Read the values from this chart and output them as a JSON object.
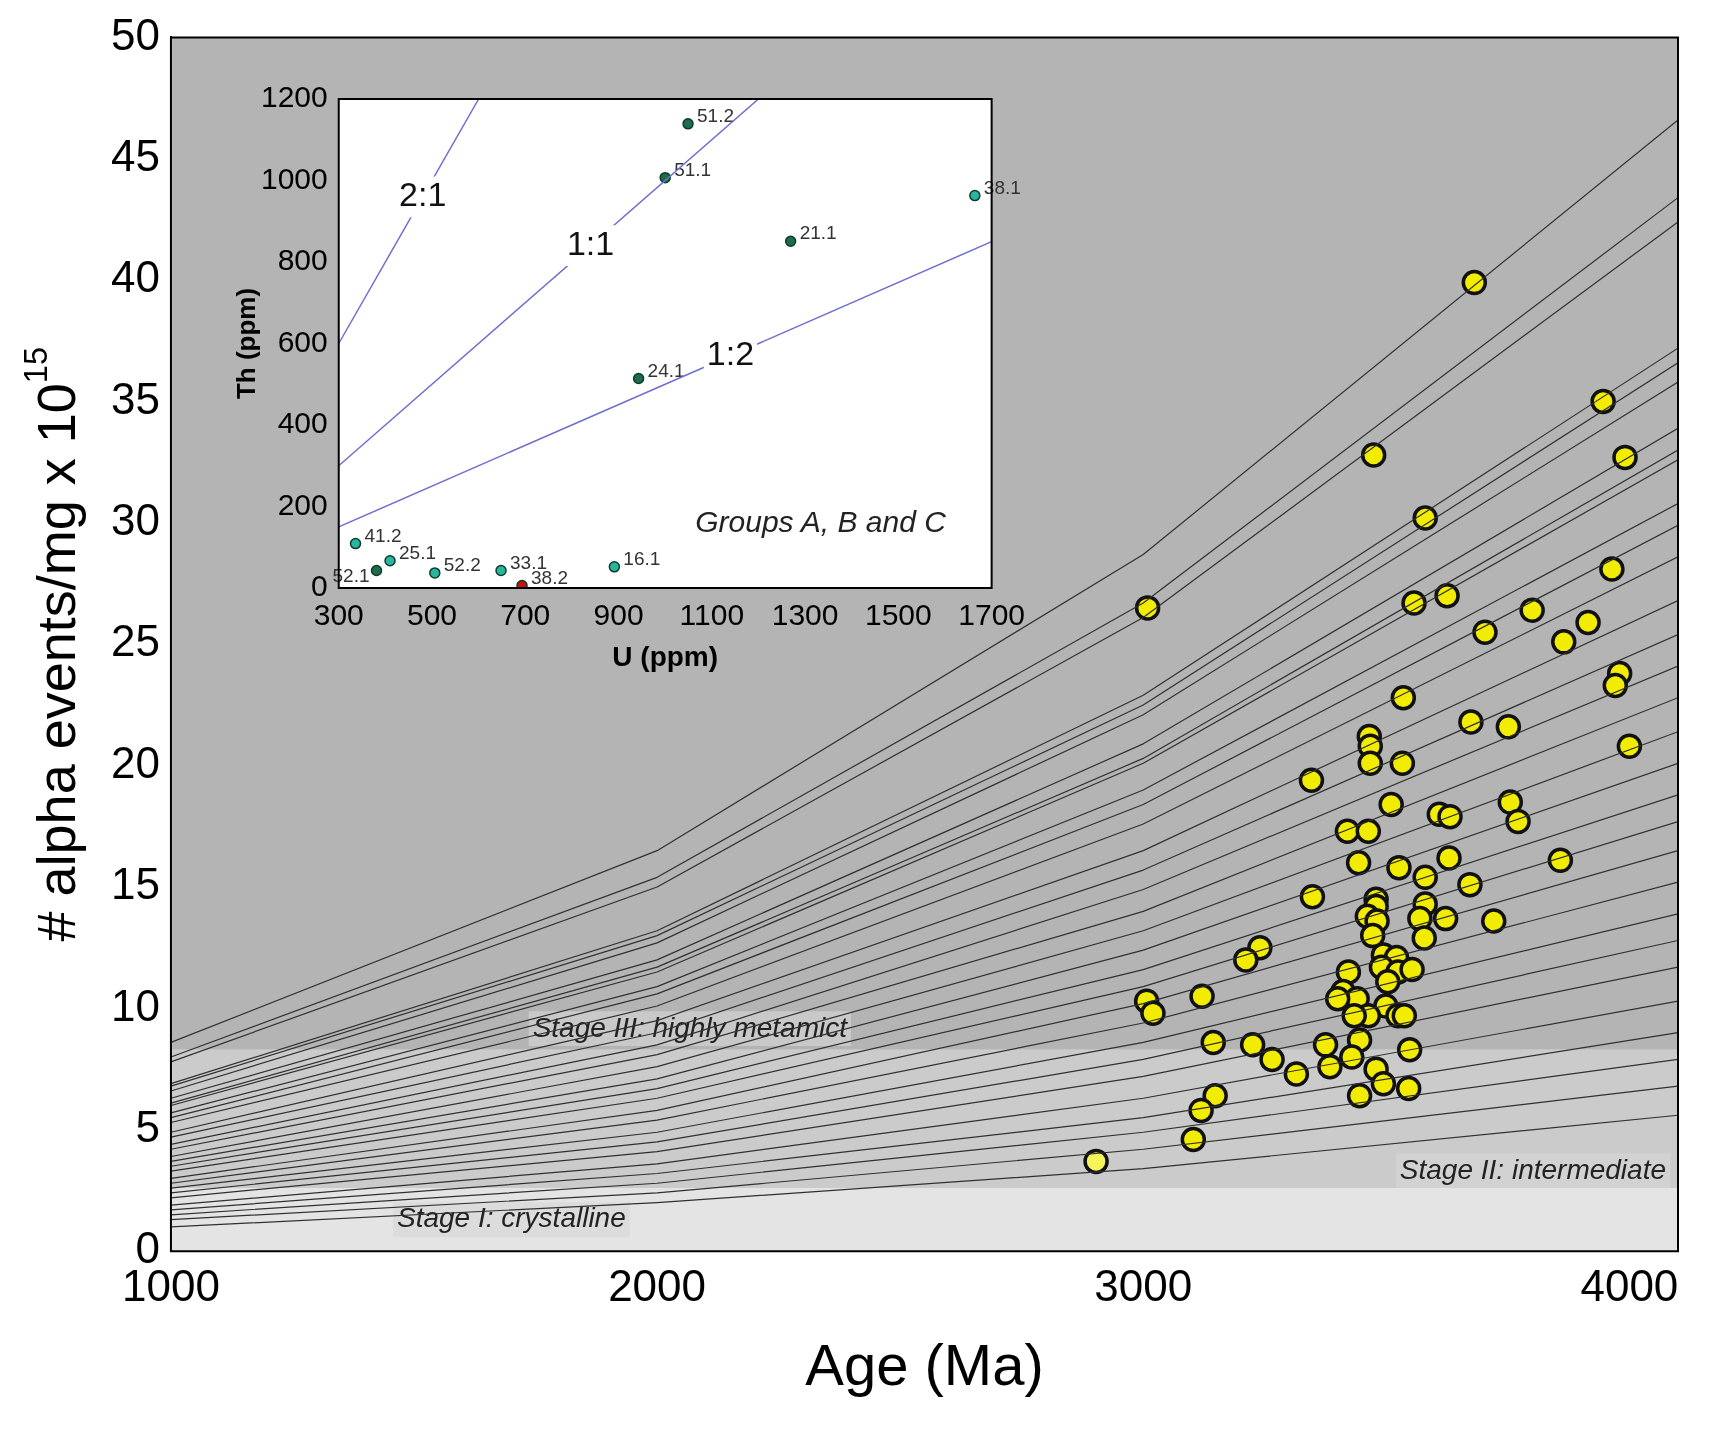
{
  "chart_data": [
    {
      "type": "scatter",
      "xlabel": "Age (Ma)",
      "ylabel": "# alpha events/mg x 10$^{15}$",
      "xlim": [
        1000,
        4100
      ],
      "xticks": [
        1000,
        2000,
        3000,
        4000
      ],
      "ylim": [
        0,
        50
      ],
      "yticks": [
        0,
        5,
        10,
        15,
        20,
        25,
        30,
        35,
        40,
        45,
        50
      ],
      "grid": false,
      "legend": false,
      "bands": [
        {
          "axis": "y",
          "from": 0,
          "to": 2.6,
          "label": "Stage I: crystalline",
          "color": "#e4e4e4"
        },
        {
          "axis": "y",
          "from": 2.6,
          "to": 8.3,
          "label": "Stage II: intermediate",
          "color": "#cbcbcb"
        },
        {
          "axis": "y",
          "from": 8.3,
          "to": 50,
          "label": "Stage III: highly metamict",
          "color": "#b4b4b4"
        }
      ],
      "series": [
        {
          "type": "line",
          "color": "#303030",
          "x": [
            1000,
            2000,
            3000,
            4100
          ],
          "values": [
            8.6,
            16.5,
            28.7,
            46.6
          ]
        },
        {
          "type": "line",
          "color": "#303030",
          "x": [
            1000,
            2000,
            3000,
            4100
          ],
          "values": [
            8.0,
            15.4,
            26.7,
            43.4
          ]
        },
        {
          "type": "line",
          "color": "#303030",
          "x": [
            1000,
            2000,
            3000,
            4100
          ],
          "values": [
            7.8,
            15.0,
            26.1,
            42.4
          ]
        },
        {
          "type": "line",
          "color": "#303030",
          "x": [
            1000,
            2000,
            3000,
            4100
          ],
          "values": [
            6.9,
            13.2,
            22.9,
            37.2
          ]
        },
        {
          "type": "line",
          "color": "#303030",
          "x": [
            1000,
            2000,
            3000,
            4100
          ],
          "values": [
            6.8,
            13.0,
            22.5,
            36.6
          ]
        },
        {
          "type": "line",
          "color": "#303030",
          "x": [
            1000,
            2000,
            3000,
            4100
          ],
          "values": [
            6.6,
            12.7,
            22.1,
            35.8
          ]
        },
        {
          "type": "line",
          "color": "#303030",
          "x": [
            1000,
            2000,
            3000,
            4100
          ],
          "values": [
            6.3,
            12.0,
            20.9,
            33.9
          ]
        },
        {
          "type": "line",
          "color": "#303030",
          "x": [
            1000,
            2000,
            3000,
            4100
          ],
          "values": [
            6.1,
            11.7,
            20.3,
            33.0
          ]
        },
        {
          "type": "line",
          "color": "#303030",
          "x": [
            1000,
            2000,
            3000,
            4100
          ],
          "values": [
            6.0,
            11.5,
            20.1,
            32.6
          ]
        },
        {
          "type": "line",
          "color": "#303030",
          "x": [
            1000,
            2000,
            3000,
            4100
          ],
          "values": [
            5.7,
            10.9,
            19.0,
            30.8
          ]
        },
        {
          "type": "line",
          "color": "#303030",
          "x": [
            1000,
            2000,
            3000,
            4100
          ],
          "values": [
            5.5,
            10.6,
            18.4,
            29.9
          ]
        },
        {
          "type": "line",
          "color": "#303030",
          "x": [
            1000,
            2000,
            3000,
            4100
          ],
          "values": [
            5.3,
            10.1,
            17.6,
            28.6
          ]
        },
        {
          "type": "line",
          "color": "#303030",
          "x": [
            1000,
            2000,
            3000,
            4100
          ],
          "values": [
            4.9,
            9.5,
            16.5,
            26.8
          ]
        },
        {
          "type": "line",
          "color": "#303030",
          "x": [
            1000,
            2000,
            3000,
            4100
          ],
          "values": [
            4.7,
            9.0,
            15.7,
            25.4
          ]
        },
        {
          "type": "line",
          "color": "#303030",
          "x": [
            1000,
            2000,
            3000,
            4100
          ],
          "values": [
            4.4,
            8.5,
            14.9,
            24.1
          ]
        },
        {
          "type": "line",
          "color": "#303030",
          "x": [
            1000,
            2000,
            3000,
            4100
          ],
          "values": [
            4.2,
            8.1,
            14.0,
            22.8
          ]
        },
        {
          "type": "line",
          "color": "#303030",
          "x": [
            1000,
            2000,
            3000,
            4100
          ],
          "values": [
            3.9,
            7.6,
            13.2,
            21.4
          ]
        },
        {
          "type": "line",
          "color": "#303030",
          "x": [
            1000,
            2000,
            3000,
            4100
          ],
          "values": [
            3.7,
            7.1,
            12.4,
            20.1
          ]
        },
        {
          "type": "line",
          "color": "#303030",
          "x": [
            1000,
            2000,
            3000,
            4100
          ],
          "values": [
            3.5,
            6.7,
            11.6,
            18.8
          ]
        },
        {
          "type": "line",
          "color": "#303030",
          "x": [
            1000,
            2000,
            3000,
            4100
          ],
          "values": [
            3.3,
            6.3,
            10.9,
            17.7
          ]
        },
        {
          "type": "line",
          "color": "#303030",
          "x": [
            1000,
            2000,
            3000,
            4100
          ],
          "values": [
            3.0,
            5.8,
            10.2,
            16.5
          ]
        },
        {
          "type": "line",
          "color": "#303030",
          "x": [
            1000,
            2000,
            3000,
            4100
          ],
          "values": [
            2.8,
            5.4,
            9.4,
            15.2
          ]
        },
        {
          "type": "line",
          "color": "#303030",
          "x": [
            1000,
            2000,
            3000,
            4100
          ],
          "values": [
            2.6,
            4.9,
            8.6,
            13.9
          ]
        },
        {
          "type": "line",
          "color": "#303030",
          "x": [
            1000,
            2000,
            3000,
            4100
          ],
          "values": [
            2.4,
            4.5,
            7.9,
            12.8
          ]
        },
        {
          "type": "line",
          "color": "#303030",
          "x": [
            1000,
            2000,
            3000,
            4100
          ],
          "values": [
            2.2,
            4.1,
            7.2,
            11.7
          ]
        },
        {
          "type": "line",
          "color": "#303030",
          "x": [
            1000,
            2000,
            3000,
            4100
          ],
          "values": [
            1.9,
            3.6,
            6.3,
            10.3
          ]
        },
        {
          "type": "line",
          "color": "#303030",
          "x": [
            1000,
            2000,
            3000,
            4100
          ],
          "values": [
            1.7,
            3.2,
            5.5,
            9.0
          ]
        },
        {
          "type": "line",
          "color": "#303030",
          "x": [
            1000,
            2000,
            3000,
            4100
          ],
          "values": [
            1.5,
            2.8,
            4.9,
            7.9
          ]
        },
        {
          "type": "line",
          "color": "#303030",
          "x": [
            1000,
            2000,
            3000,
            4100
          ],
          "values": [
            1.3,
            2.4,
            4.2,
            6.8
          ]
        },
        {
          "type": "line",
          "color": "#303030",
          "x": [
            1000,
            2000,
            3000,
            4100
          ],
          "values": [
            1.0,
            2.0,
            3.4,
            5.6
          ]
        },
        {
          "type": "scatter",
          "marker": "circle",
          "color": "#f2ec00",
          "x": [
            3009,
            3681,
            3946,
            3991,
            3474,
            3580,
            3964,
            3625,
            3557,
            3800,
            3703,
            3915,
            3865,
            3980,
            3971,
            4000,
            3535,
            3674,
            3751,
            3465,
            3467,
            3467,
            3533,
            3346,
            3510,
            3755,
            3771,
            3609,
            3631,
            3420,
            3463,
            3629,
            3858,
            3443,
            3526,
            3580,
            3672,
            3348,
            3479,
            3479,
            3580,
            3721,
            3461,
            3481,
            3622,
            3569,
            3472,
            3578,
            3240,
            3211,
            3494,
            3521,
            3490,
            3524,
            3553,
            3422,
            3503,
            3411,
            3440,
            3400,
            3121,
            3007,
            3020,
            3499,
            3524,
            3463,
            3434,
            3537,
            3144,
            3225,
            3375,
            3445,
            3548,
            3265,
            3384,
            3479,
            3315,
            3429,
            3494,
            3445,
            3546,
            3148,
            3119,
            3103
          ],
          "values": [
            26.5,
            39.9,
            35.0,
            32.7,
            32.8,
            30.2,
            28.1,
            27.0,
            26.7,
            26.4,
            25.5,
            25.9,
            25.1,
            23.8,
            23.3,
            20.8,
            22.8,
            21.8,
            21.6,
            21.2,
            20.8,
            20.1,
            20.1,
            19.4,
            18.4,
            18.5,
            17.7,
            18.0,
            17.9,
            17.3,
            17.3,
            16.2,
            16.1,
            16.0,
            15.8,
            15.4,
            15.1,
            14.6,
            14.5,
            14.2,
            14.3,
            13.6,
            13.8,
            13.6,
            13.7,
            13.7,
            13.0,
            12.9,
            12.5,
            12.0,
            12.2,
            12.1,
            11.7,
            11.5,
            11.6,
            11.5,
            11.1,
            10.7,
            10.4,
            10.4,
            10.5,
            10.3,
            9.8,
            10.1,
            9.7,
            9.7,
            9.7,
            9.7,
            8.6,
            8.5,
            8.5,
            8.7,
            8.3,
            7.9,
            7.6,
            7.5,
            7.3,
            8.0,
            6.9,
            6.4,
            6.7,
            6.4,
            5.8,
            4.6
          ]
        },
        {
          "type": "scatter",
          "marker": "circle",
          "color": "#f5f55a",
          "x": [
            2903
          ],
          "values": [
            3.7
          ]
        }
      ]
    },
    {
      "type": "scatter",
      "xlabel": "U (ppm)",
      "ylabel": "Th (ppm)",
      "xlim": [
        300,
        1700
      ],
      "xticks": [
        300,
        500,
        700,
        900,
        1100,
        1300,
        1500,
        1700
      ],
      "ylim": [
        0,
        1200
      ],
      "yticks": [
        0,
        200,
        400,
        600,
        800,
        1000,
        1200
      ],
      "grid": false,
      "legend": false,
      "annotations": [
        "Groups A, B and C",
        {
          "text": "51.2",
          "x": 1049,
          "y": 1139
        },
        {
          "text": "51.1",
          "x": 1000,
          "y": 1007
        },
        {
          "text": "38.1",
          "x": 1664,
          "y": 963
        },
        {
          "text": "21.1",
          "x": 1269,
          "y": 851
        },
        {
          "text": "24.1",
          "x": 943,
          "y": 514
        },
        {
          "text": "41.2",
          "x": 336,
          "y": 109
        },
        {
          "text": "52.1",
          "x": 381,
          "y": 43
        },
        {
          "text": "25.1",
          "x": 410,
          "y": 67
        },
        {
          "text": "52.2",
          "x": 506,
          "y": 37
        },
        {
          "text": "33.1",
          "x": 648,
          "y": 43
        },
        {
          "text": "38.2",
          "x": 693,
          "y": 6
        },
        {
          "text": "16.1",
          "x": 891,
          "y": 52
        }
      ],
      "series": [
        {
          "type": "line",
          "name": "2:1",
          "color": "#6f6fd0",
          "x": [
            300,
            600
          ],
          "values": [
            600,
            1200
          ]
        },
        {
          "type": "line",
          "name": "1:1",
          "color": "#6f6fd0",
          "x": [
            300,
            1200
          ],
          "values": [
            300,
            1200
          ]
        },
        {
          "type": "line",
          "name": "1:2",
          "color": "#6f6fd0",
          "x": [
            300,
            1700
          ],
          "values": [
            150,
            850
          ]
        },
        {
          "type": "scatter",
          "marker": "circle",
          "color": "#1f6b4a",
          "x": [
            1049,
            1000,
            1269,
            943,
            381
          ],
          "values": [
            1139,
            1007,
            851,
            514,
            43
          ]
        },
        {
          "type": "scatter",
          "marker": "circle",
          "color": "#2ab5a0",
          "x": [
            1664,
            336,
            410,
            506,
            648,
            891
          ],
          "values": [
            963,
            109,
            67,
            37,
            43,
            52
          ]
        },
        {
          "type": "scatter",
          "marker": "circle",
          "color": "#d01010",
          "x": [
            693
          ],
          "values": [
            6
          ]
        }
      ]
    }
  ]
}
